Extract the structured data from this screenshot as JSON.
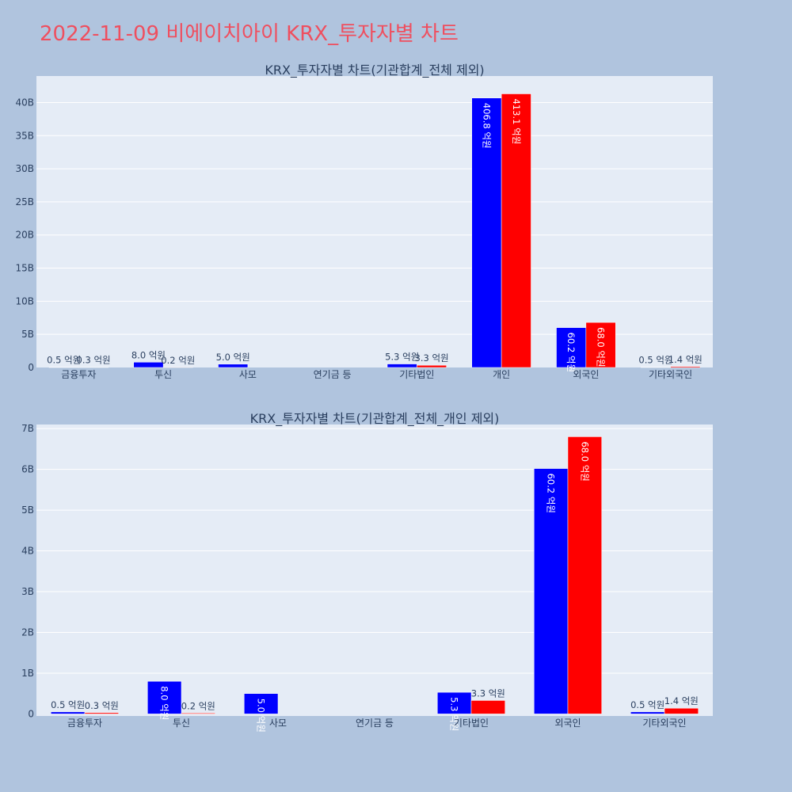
{
  "page_title": "2022-11-09 비에이치아이 KRX_투자자별 차트",
  "colors": {
    "series_a": "#0000ff",
    "series_b": "#ff0000",
    "plot_bg": "#e5ecf6",
    "page_bg": "#b0c4de",
    "title": "#ef4f5f"
  },
  "chart_data": [
    {
      "type": "bar",
      "title": "KRX_투자자별 차트(기관합계_전체 제외)",
      "categories": [
        "금융투자",
        "투신",
        "사모",
        "연기금 등",
        "기타법인",
        "개인",
        "외국인",
        "기타외국인"
      ],
      "series": [
        {
          "values": [
            0.05,
            0.8,
            0.5,
            0,
            0.53,
            40.68,
            6.02,
            0.05
          ],
          "labels": [
            "0.5 억원",
            "8.0 억원",
            "5.0 억원",
            "",
            "5.3 억원",
            "406.8 억원",
            "60.2 억원",
            "0.5 억원"
          ]
        },
        {
          "values": [
            0.03,
            0.02,
            0,
            0,
            0.33,
            41.31,
            6.8,
            0.14
          ],
          "labels": [
            "0.3 억원",
            "0.2 억원",
            "",
            "",
            "3.3 억원",
            "413.1 억원",
            "68.0 억원",
            "1.4 억원"
          ]
        }
      ],
      "ylim": [
        0,
        44
      ],
      "y_ticks": [
        0,
        5,
        10,
        15,
        20,
        25,
        30,
        35,
        40
      ],
      "y_tick_labels": [
        "0",
        "5B",
        "10B",
        "15B",
        "20B",
        "25B",
        "30B",
        "35B",
        "40B"
      ],
      "grid": true
    },
    {
      "type": "bar",
      "title": "KRX_투자자별 차트(기관합계_전체_개인 제외)",
      "categories": [
        "금융투자",
        "투신",
        "사모",
        "연기금 등",
        "기타법인",
        "외국인",
        "기타외국인"
      ],
      "series": [
        {
          "values": [
            0.05,
            0.8,
            0.5,
            0,
            0.53,
            6.02,
            0.05
          ],
          "labels": [
            "0.5 억원",
            "8.0 억원",
            "5.0 억원",
            "",
            "5.3 억원",
            "60.2 억원",
            "0.5 억원"
          ]
        },
        {
          "values": [
            0.03,
            0.02,
            0,
            0,
            0.33,
            6.8,
            0.14
          ],
          "labels": [
            "0.3 억원",
            "0.2 억원",
            "",
            "",
            "3.3 억원",
            "68.0 억원",
            "1.4 억원"
          ]
        }
      ],
      "ylim": [
        -0.05,
        7.1
      ],
      "y_ticks": [
        0,
        1,
        2,
        3,
        4,
        5,
        6,
        7
      ],
      "y_tick_labels": [
        "0",
        "1B",
        "2B",
        "3B",
        "4B",
        "5B",
        "6B",
        "7B"
      ],
      "grid": true
    }
  ]
}
